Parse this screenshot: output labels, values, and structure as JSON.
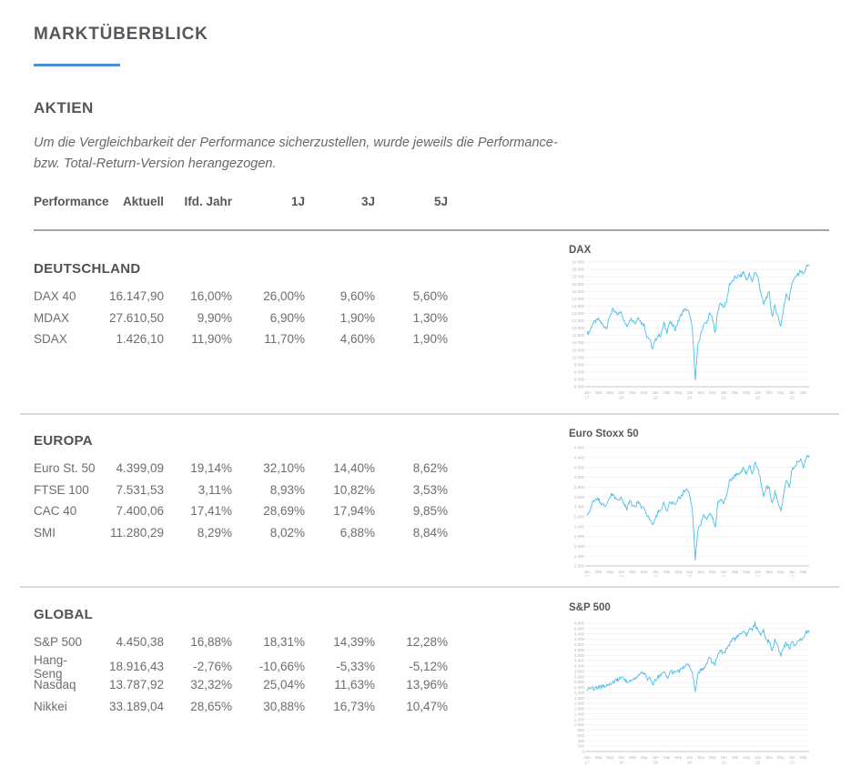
{
  "header": {
    "title": "MARKTÜBERBLICK",
    "section": "AKTIEN"
  },
  "note": {
    "line1": "Um die Vergleichbarkeit der Performance sicherzustellen, wurde jeweils die Performance-",
    "line2": "bzw. Total-Return-Version herangezogen."
  },
  "table": {
    "headers": [
      "Performance",
      "Aktuell",
      "Ifd. Jahr",
      "1J",
      "3J",
      "5J"
    ],
    "groups": [
      {
        "name": "DEUTSCHLAND",
        "rows": [
          {
            "label": "DAX 40",
            "values": [
              "16.147,90",
              "16,00%",
              "26,00%",
              "9,60%",
              "5,60%"
            ]
          },
          {
            "label": "MDAX",
            "values": [
              "27.610,50",
              "9,90%",
              "6,90%",
              "1,90%",
              "1,30%"
            ]
          },
          {
            "label": "SDAX",
            "values": [
              "1.426,10",
              "11,90%",
              "11,70%",
              "4,60%",
              "1,90%"
            ]
          }
        ]
      },
      {
        "name": "EUROPA",
        "rows": [
          {
            "label": "Euro St. 50",
            "values": [
              "4.399,09",
              "19,14%",
              "32,10%",
              "14,40%",
              "8,62%"
            ]
          },
          {
            "label": "FTSE 100",
            "values": [
              "7.531,53",
              "3,11%",
              "8,93%",
              "10,82%",
              "3,53%"
            ]
          },
          {
            "label": "CAC 40",
            "values": [
              "7.400,06",
              "17,41%",
              "28,69%",
              "17,94%",
              "9,85%"
            ]
          },
          {
            "label": "SMI",
            "values": [
              "11.280,29",
              "8,29%",
              "8,02%",
              "6,88%",
              "8,84%"
            ]
          }
        ]
      },
      {
        "name": "GLOBAL",
        "rows": [
          {
            "label": "S&P 500",
            "values": [
              "4.450,38",
              "16,88%",
              "18,31%",
              "14,39%",
              "12,28%"
            ]
          },
          {
            "label": "Hang-Seng",
            "values": [
              "18.916,43",
              "-2,76%",
              "-10,66%",
              "-5,33%",
              "-5,12%"
            ]
          },
          {
            "label": "Nasdaq",
            "values": [
              "13.787,92",
              "32,32%",
              "25,04%",
              "11,63%",
              "13,96%"
            ]
          },
          {
            "label": "Nikkei",
            "values": [
              "33.189,04",
              "28,65%",
              "30,88%",
              "16,73%",
              "10,47%"
            ]
          }
        ]
      }
    ]
  },
  "colors": {
    "accent_blue": "#4a90d5",
    "chart_line": "#4cbfe6",
    "gridline": "#ededed",
    "axis_line": "#c6c8ca",
    "axis_label": "#b2b5b8"
  },
  "chart_data": [
    {
      "type": "line",
      "title": "DAX",
      "x_start": "Jan 2017",
      "x_end": "Jul 2023",
      "x_unit": "month",
      "ylim": [
        8000,
        16500
      ],
      "y_step": 500,
      "grid": true,
      "legend": "none",
      "values": [
        11600,
        11800,
        12300,
        12440,
        12600,
        12320,
        12120,
        12060,
        12830,
        13230,
        13020,
        12920,
        13190,
        12440,
        12100,
        12610,
        12600,
        12310,
        12800,
        12360,
        12250,
        11450,
        11250,
        10560,
        11170,
        11500,
        11530,
        12340,
        11730,
        12400,
        12190,
        11940,
        12430,
        12870,
        13240,
        13250,
        12980,
        11890,
        8560,
        10860,
        11590,
        12310,
        12310,
        12950,
        12760,
        11560,
        13290,
        13720,
        13430,
        13790,
        15010,
        15140,
        15420,
        15530,
        15540,
        15840,
        15260,
        15690,
        15100,
        15880,
        15470,
        14460,
        13600,
        14100,
        14390,
        12780,
        13480,
        12830,
        12110,
        13250,
        14400,
        13920,
        15130,
        15370,
        15630,
        15920,
        15660,
        16150,
        16300
      ]
    },
    {
      "type": "line",
      "title": "Euro Stoxx 50",
      "x_start": "Jan 2017",
      "x_end": "Jul 2023",
      "x_unit": "month",
      "ylim": [
        2200,
        4600
      ],
      "y_step": 200,
      "grid": true,
      "legend": "none",
      "values": [
        3231,
        3320,
        3501,
        3560,
        3555,
        3442,
        3450,
        3421,
        3595,
        3674,
        3570,
        3504,
        3609,
        3439,
        3362,
        3537,
        3407,
        3396,
        3525,
        3393,
        3399,
        3197,
        3173,
        3001,
        3159,
        3298,
        3352,
        3515,
        3280,
        3474,
        3467,
        3427,
        3569,
        3604,
        3704,
        3745,
        3641,
        3329,
        2340,
        2928,
        3050,
        3234,
        3174,
        3273,
        3194,
        2958,
        3493,
        3553,
        3481,
        3636,
        3919,
        3974,
        4039,
        4064,
        4089,
        4196,
        4048,
        4251,
        4063,
        4298,
        4175,
        3924,
        3600,
        3803,
        3789,
        3455,
        3708,
        3517,
        3318,
        3618,
        3965,
        3794,
        4163,
        4238,
        4315,
        4359,
        4218,
        4399,
        4440
      ]
    },
    {
      "type": "line",
      "title": "S&P 500",
      "x_start": "Jan 2017",
      "x_end": "Jul 2023",
      "x_unit": "month",
      "ylim": [
        0,
        4900
      ],
      "y_step": 200,
      "grid": true,
      "legend": "none",
      "values": [
        2279,
        2364,
        2363,
        2384,
        2412,
        2423,
        2470,
        2472,
        2519,
        2575,
        2648,
        2674,
        2824,
        2714,
        2641,
        2648,
        2705,
        2718,
        2816,
        2902,
        2914,
        2712,
        2760,
        2507,
        2704,
        2784,
        2834,
        2946,
        2752,
        2942,
        2980,
        2926,
        2977,
        3038,
        3141,
        3231,
        3226,
        2954,
        2300,
        2912,
        3044,
        3100,
        3271,
        3500,
        3363,
        3270,
        3622,
        3756,
        3714,
        3811,
        3973,
        4181,
        4204,
        4298,
        4395,
        4523,
        4308,
        4605,
        4567,
        4766,
        4516,
        4374,
        4530,
        4132,
        4132,
        3785,
        4130,
        3955,
        3586,
        3872,
        4080,
        3840,
        4077,
        3970,
        4109,
        4169,
        4180,
        4450,
        4450
      ]
    }
  ],
  "x_ticks": [
    {
      "month": "Jan",
      "year": "17",
      "index": 0
    },
    {
      "month": "Mai",
      "index": 4
    },
    {
      "month": "Sep",
      "index": 8
    },
    {
      "month": "Jan",
      "year": "18",
      "index": 12
    },
    {
      "month": "Mai",
      "index": 16
    },
    {
      "month": "Sep",
      "index": 20
    },
    {
      "month": "Jan",
      "year": "19",
      "index": 24
    },
    {
      "month": "Mai",
      "index": 28
    },
    {
      "month": "Sep",
      "index": 32
    },
    {
      "month": "Jan",
      "year": "20",
      "index": 36
    },
    {
      "month": "Mai",
      "index": 40
    },
    {
      "month": "Sep",
      "index": 44
    },
    {
      "month": "Jan",
      "year": "21",
      "index": 48
    },
    {
      "month": "Mai",
      "index": 52
    },
    {
      "month": "Sep",
      "index": 56
    },
    {
      "month": "Jan",
      "year": "22",
      "index": 60
    },
    {
      "month": "Mai",
      "index": 64
    },
    {
      "month": "Sep",
      "index": 68
    },
    {
      "month": "Jan",
      "year": "23",
      "index": 72
    },
    {
      "month": "Mai",
      "index": 76
    }
  ]
}
